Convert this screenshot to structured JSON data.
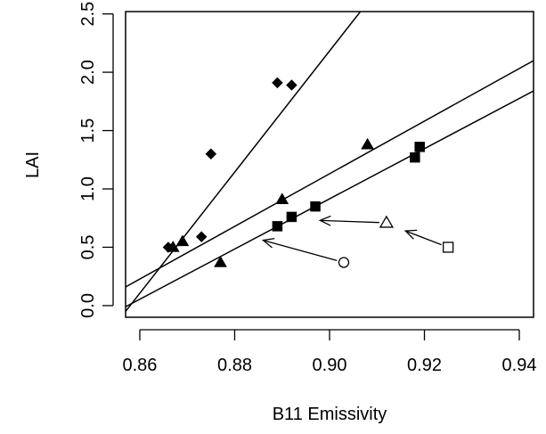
{
  "chart_data": {
    "type": "scatter",
    "title": "",
    "xlabel": "B11 Emissivity",
    "ylabel": "LAI",
    "xlim": [
      0.857,
      0.943
    ],
    "ylim": [
      -0.1,
      2.52
    ],
    "xticks": [
      0.86,
      0.88,
      0.9,
      0.92,
      0.94
    ],
    "xtick_labels": [
      "0.86",
      "0.88",
      "0.90",
      "0.92",
      "0.94"
    ],
    "yticks": [
      0.0,
      0.5,
      1.0,
      1.5,
      2.0,
      2.5
    ],
    "ytick_labels": [
      "0.0",
      "0.5",
      "1.0",
      "1.5",
      "2.0",
      "2.5"
    ],
    "grid": false,
    "series": [
      {
        "marker": "diamond",
        "points": [
          {
            "x": 0.866,
            "y": 0.5
          },
          {
            "x": 0.873,
            "y": 0.59
          },
          {
            "x": 0.875,
            "y": 1.3
          },
          {
            "x": 0.889,
            "y": 1.91
          },
          {
            "x": 0.892,
            "y": 1.89
          }
        ]
      },
      {
        "marker": "triangle",
        "points": [
          {
            "x": 0.867,
            "y": 0.5
          },
          {
            "x": 0.869,
            "y": 0.55
          },
          {
            "x": 0.877,
            "y": 0.37
          },
          {
            "x": 0.89,
            "y": 0.91
          },
          {
            "x": 0.908,
            "y": 1.38
          }
        ]
      },
      {
        "marker": "square",
        "points": [
          {
            "x": 0.889,
            "y": 0.68
          },
          {
            "x": 0.892,
            "y": 0.76
          },
          {
            "x": 0.897,
            "y": 0.85
          },
          {
            "x": 0.918,
            "y": 1.27
          },
          {
            "x": 0.919,
            "y": 1.36
          }
        ]
      }
    ],
    "fit_lines": [
      {
        "x": [
          0.857,
          0.9065
        ],
        "y": [
          -0.05,
          2.52
        ]
      },
      {
        "x": [
          0.857,
          0.943
        ],
        "y": [
          0.16,
          2.1
        ]
      },
      {
        "x": [
          0.857,
          0.943
        ],
        "y": [
          -0.01,
          1.84
        ]
      }
    ],
    "annotations": [
      {
        "marker": "open-circle",
        "x": 0.903,
        "y": 0.37,
        "arrow_to": {
          "x": 0.886,
          "y": 0.56
        }
      },
      {
        "marker": "open-triangle",
        "x": 0.912,
        "y": 0.71,
        "arrow_to": {
          "x": 0.898,
          "y": 0.73
        }
      },
      {
        "marker": "open-square",
        "x": 0.925,
        "y": 0.5,
        "arrow_to": {
          "x": 0.916,
          "y": 0.64
        }
      }
    ]
  }
}
